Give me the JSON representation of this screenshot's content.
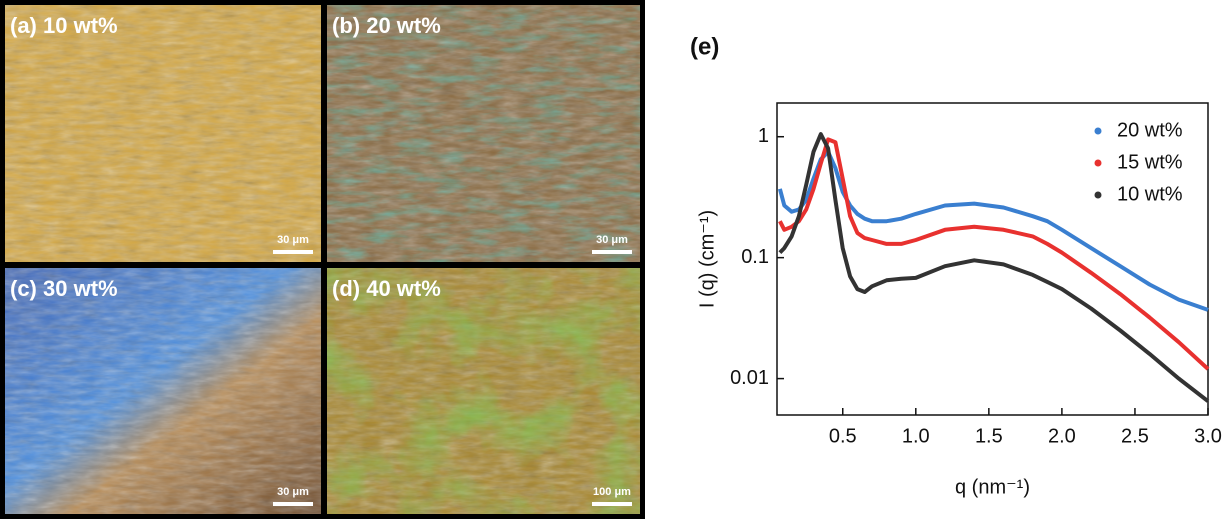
{
  "panels": [
    {
      "label": "(a) 10 wt%",
      "scale_bar": "30 μm"
    },
    {
      "label": "(b) 20 wt%",
      "scale_bar": "30 μm"
    },
    {
      "label": "(c) 30 wt%",
      "scale_bar": "30 μm"
    },
    {
      "label": "(d) 40 wt%",
      "scale_bar": "100 μm"
    }
  ],
  "chart_data": {
    "type": "line",
    "panel_label": "(e)",
    "x_label": "q (nm⁻¹)",
    "y_label": "I (q) (cm⁻¹)",
    "log_y": true,
    "legend": "upper right",
    "xlim": [
      0.05,
      3.0
    ],
    "ylim": [
      0.005,
      1.9
    ],
    "xticks": [
      0.5,
      {
        "value": 1.0,
        "label": "1.0"
      },
      1.5,
      {
        "value": 2.0,
        "label": "2.0"
      },
      2.5,
      {
        "value": 3.0,
        "label": "3.0"
      }
    ],
    "yticks": [
      1,
      0.1,
      0.01
    ],
    "x": [
      0.07,
      0.1,
      0.15,
      0.2,
      0.25,
      0.3,
      0.35,
      0.4,
      0.45,
      0.5,
      0.55,
      0.6,
      0.65,
      0.7,
      0.8,
      0.9,
      1.0,
      1.2,
      1.4,
      1.6,
      1.8,
      1.9,
      2.0,
      2.2,
      2.4,
      2.6,
      2.8,
      3.0
    ],
    "series": [
      {
        "name": "20 wt%",
        "color": "#3a7fd0",
        "values": [
          0.37,
          0.27,
          0.24,
          0.25,
          0.3,
          0.45,
          0.65,
          0.75,
          0.55,
          0.35,
          0.27,
          0.23,
          0.21,
          0.2,
          0.2,
          0.21,
          0.23,
          0.27,
          0.28,
          0.26,
          0.22,
          0.2,
          0.17,
          0.12,
          0.085,
          0.06,
          0.045,
          0.037
        ]
      },
      {
        "name": "15 wt%",
        "color": "#e8312f",
        "values": [
          0.2,
          0.17,
          0.18,
          0.2,
          0.25,
          0.37,
          0.6,
          0.95,
          0.9,
          0.45,
          0.22,
          0.16,
          0.145,
          0.14,
          0.13,
          0.13,
          0.14,
          0.17,
          0.18,
          0.17,
          0.15,
          0.13,
          0.11,
          0.075,
          0.05,
          0.032,
          0.02,
          0.012
        ]
      },
      {
        "name": "10 wt%",
        "color": "#333333",
        "values": [
          0.11,
          0.12,
          0.15,
          0.22,
          0.4,
          0.75,
          1.05,
          0.8,
          0.3,
          0.12,
          0.07,
          0.055,
          0.052,
          0.058,
          0.065,
          0.067,
          0.068,
          0.085,
          0.095,
          0.088,
          0.072,
          0.063,
          0.055,
          0.038,
          0.025,
          0.016,
          0.01,
          0.0065
        ]
      }
    ]
  }
}
